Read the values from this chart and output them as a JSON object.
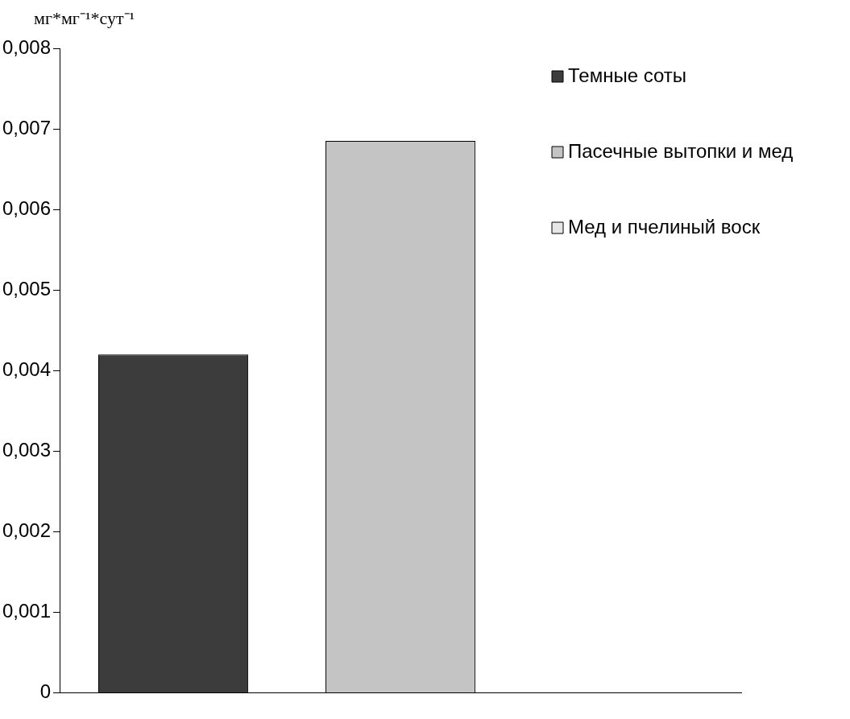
{
  "chart_data": {
    "type": "bar",
    "ylabel": "мг*мг⁻¹*сут⁻¹",
    "categories": [
      null
    ],
    "series": [
      {
        "name": "Темные соты",
        "color": "#3c3c3c",
        "values": [
          0.0042
        ]
      },
      {
        "name": "Пасечные вытопки и мед",
        "color": "#c4c4c4",
        "values": [
          0.00685
        ]
      },
      {
        "name": "Мед и пчелиный воск",
        "color": "#e6e6e6",
        "values": [
          0
        ]
      }
    ],
    "ylim": [
      0,
      0.008
    ],
    "yticks": [
      0,
      {
        "value": 0.001,
        "label": "0,001"
      },
      {
        "value": 0.002,
        "label": "0,002"
      },
      {
        "value": 0.003,
        "label": "0,003"
      },
      {
        "value": 0.004,
        "label": "0,004"
      },
      {
        "value": 0.005,
        "label": "0,005"
      },
      {
        "value": 0.006,
        "label": "0,006"
      },
      {
        "value": 0.007,
        "label": "0,007"
      },
      {
        "value": 0.008,
        "label": "0,008"
      }
    ],
    "grid": false,
    "legend": "top right"
  }
}
